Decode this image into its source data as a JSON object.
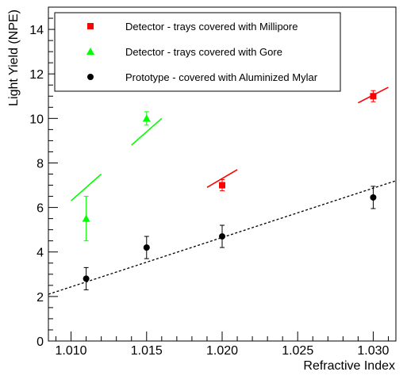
{
  "chart_data": {
    "type": "scatter",
    "title": "",
    "xlabel": "Refractive Index",
    "ylabel": "Light Yield (NPE)",
    "xlim": [
      1.0085,
      1.0315
    ],
    "ylim": [
      0,
      15
    ],
    "x_ticks": [
      "1.010",
      "1.015",
      "1.020",
      "1.025",
      "1.030"
    ],
    "x_tick_values": [
      1.01,
      1.015,
      1.02,
      1.025,
      1.03
    ],
    "y_ticks": [
      "0",
      "2",
      "4",
      "6",
      "8",
      "10",
      "12",
      "14"
    ],
    "y_tick_values": [
      0,
      2,
      4,
      6,
      8,
      10,
      12,
      14
    ],
    "legend_position": "top-left",
    "series": [
      {
        "name": "Detector  - trays covered with Millipore",
        "marker": "square",
        "color": "#ff0000",
        "points": [
          {
            "x": 1.02,
            "y": 7.0,
            "err": 0.25
          },
          {
            "x": 1.03,
            "y": 11.0,
            "err": 0.25
          }
        ],
        "fit_segments": [
          {
            "x": [
              1.019,
              1.021
            ],
            "y": [
              6.9,
              7.7
            ]
          },
          {
            "x": [
              1.029,
              1.031
            ],
            "y": [
              10.7,
              11.4
            ]
          }
        ]
      },
      {
        "name": "Detector  - trays covered with Gore",
        "marker": "triangle",
        "color": "#00ff00",
        "points": [
          {
            "x": 1.011,
            "y": 5.5,
            "err": 1.0
          },
          {
            "x": 1.015,
            "y": 10.0,
            "err": 0.3
          }
        ],
        "fit_segments": [
          {
            "x": [
              1.01,
              1.012
            ],
            "y": [
              6.3,
              7.5
            ]
          },
          {
            "x": [
              1.014,
              1.016
            ],
            "y": [
              8.8,
              10.0
            ]
          }
        ]
      },
      {
        "name": "Prototype - covered with Aluminized Mylar",
        "marker": "circle",
        "color": "#000000",
        "points": [
          {
            "x": 1.011,
            "y": 2.8,
            "err": 0.5
          },
          {
            "x": 1.015,
            "y": 4.2,
            "err": 0.5
          },
          {
            "x": 1.02,
            "y": 4.7,
            "err": 0.5
          },
          {
            "x": 1.03,
            "y": 6.45,
            "err": 0.5
          }
        ]
      }
    ],
    "trend_line": {
      "style": "dashed",
      "color": "#000000",
      "x": [
        1.0085,
        1.0315
      ],
      "y": [
        2.1,
        7.2
      ]
    }
  }
}
